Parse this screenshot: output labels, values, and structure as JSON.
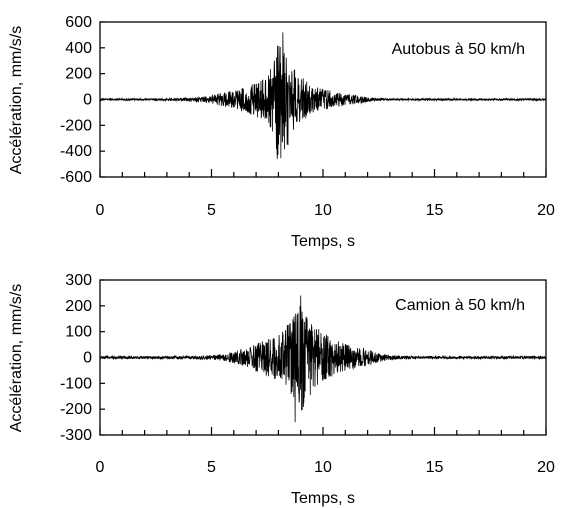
{
  "chart_data": [
    {
      "type": "line",
      "annotation": "Autobus à 50 km/h",
      "xlabel": "Temps, s",
      "ylabel": "Accélération, mm/s/s",
      "xlim": [
        0,
        20
      ],
      "ylim": [
        -600,
        600
      ],
      "xticks": [
        "0",
        "5",
        "10",
        "15",
        "20"
      ],
      "yticks": [
        "600",
        "400",
        "200",
        "0",
        "-200",
        "-400",
        "-600"
      ],
      "grid": false,
      "series_color": "#000000",
      "peak_values": {
        "max": 520,
        "min": -460,
        "time_of_peak_s": 8.2
      },
      "envelope": {
        "t": [
          0,
          1,
          2,
          3,
          3.5,
          4,
          4.5,
          5,
          5.5,
          6,
          6.5,
          7,
          7.5,
          7.8,
          8.0,
          8.2,
          8.4,
          8.6,
          9,
          9.5,
          10,
          10.5,
          11,
          11.5,
          12,
          12.5,
          13,
          15,
          20
        ],
        "amp": [
          8,
          8,
          8,
          10,
          12,
          18,
          25,
          35,
          60,
          80,
          110,
          150,
          190,
          350,
          500,
          520,
          420,
          300,
          200,
          120,
          90,
          70,
          50,
          40,
          20,
          12,
          8,
          8,
          8
        ]
      }
    },
    {
      "type": "line",
      "annotation": "Camion à 50 km/h",
      "xlabel": "Temps, s",
      "ylabel": "Accélération, mm/s/s",
      "xlim": [
        0,
        20
      ],
      "ylim": [
        -300,
        300
      ],
      "xticks": [
        "0",
        "5",
        "10",
        "15",
        "20"
      ],
      "yticks": [
        "300",
        "200",
        "100",
        "0",
        "-100",
        "-200",
        "-300"
      ],
      "grid": false,
      "series_color": "#000000",
      "peak_values": {
        "max": 240,
        "min": -250,
        "time_of_peak_s": 9.0
      },
      "envelope": {
        "t": [
          0,
          2,
          4,
          5,
          5.5,
          6,
          6.5,
          7,
          7.5,
          8,
          8.5,
          8.8,
          9.0,
          9.2,
          9.5,
          10,
          10.5,
          11,
          11.5,
          12,
          12.5,
          13,
          14,
          20
        ],
        "amp": [
          6,
          6,
          6,
          10,
          15,
          25,
          40,
          60,
          80,
          100,
          150,
          200,
          245,
          200,
          150,
          110,
          80,
          60,
          45,
          35,
          20,
          10,
          6,
          6
        ]
      }
    }
  ]
}
